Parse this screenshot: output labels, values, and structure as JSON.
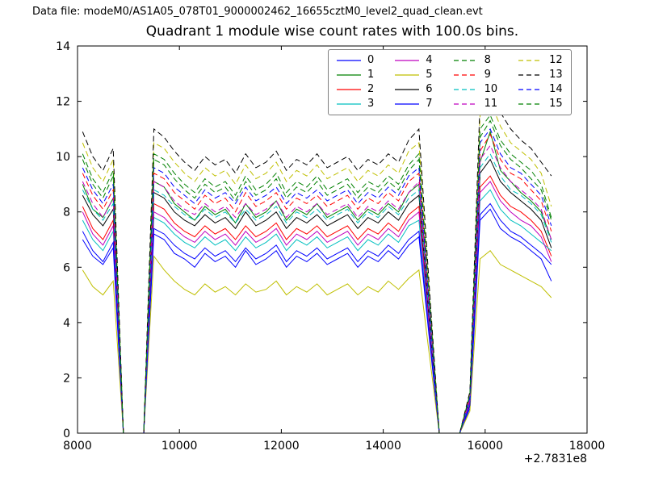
{
  "figure": {
    "header": "Data file: modeM0/AS1A05_078T01_9000002462_16655cztM0_level2_quad_clean.evt",
    "title": "Quadrant 1 module wise count rates with 100.0s bins.",
    "x_offset_label": "+2.7831e8"
  },
  "chart_data": {
    "type": "line",
    "title": "Quadrant 1 module wise count rates with 100.0s bins.",
    "xlabel": "",
    "ylabel": "",
    "xlim": [
      8000,
      18000
    ],
    "ylim": [
      0,
      14
    ],
    "xticks": [
      8000,
      10000,
      12000,
      14000,
      16000,
      18000
    ],
    "yticks": [
      0,
      2,
      4,
      6,
      8,
      10,
      12,
      14
    ],
    "x_offset": "+2.7831e8",
    "grid": false,
    "legend_position": "upper center",
    "x": [
      8100,
      8300,
      8500,
      8700,
      8900,
      9100,
      9300,
      9500,
      9700,
      9900,
      10100,
      10300,
      10500,
      10700,
      10900,
      11100,
      11300,
      11500,
      11700,
      11900,
      12100,
      12300,
      12500,
      12700,
      12900,
      13100,
      13300,
      13500,
      13700,
      13900,
      14100,
      14300,
      14500,
      14700,
      14900,
      15100,
      15300,
      15500,
      15700,
      15900,
      16100,
      16300,
      16500,
      16700,
      16900,
      17100,
      17300
    ],
    "series": [
      {
        "name": "0",
        "color": "#0000ff",
        "style": "solid",
        "values": [
          7.0,
          6.4,
          6.1,
          6.7,
          0,
          0,
          0,
          7.2,
          7.0,
          6.5,
          6.3,
          6.0,
          6.5,
          6.2,
          6.4,
          6.0,
          6.6,
          6.1,
          6.3,
          6.6,
          6.0,
          6.4,
          6.2,
          6.5,
          6.1,
          6.3,
          6.5,
          6.0,
          6.4,
          6.2,
          6.6,
          6.3,
          6.8,
          7.1,
          3.5,
          0,
          0,
          0,
          0.9,
          7.7,
          8.1,
          7.4,
          7.1,
          6.9,
          6.6,
          6.3,
          5.5
        ]
      },
      {
        "name": "1",
        "color": "#008000",
        "style": "solid",
        "values": [
          9.0,
          8.1,
          7.8,
          8.5,
          0,
          0,
          0,
          9.1,
          8.9,
          8.3,
          8.0,
          7.7,
          8.2,
          7.9,
          8.1,
          7.6,
          8.3,
          7.8,
          8.0,
          8.4,
          7.7,
          8.1,
          7.9,
          8.3,
          7.8,
          8.0,
          8.2,
          7.7,
          8.1,
          7.9,
          8.3,
          8.0,
          8.7,
          9.0,
          4.4,
          0,
          0,
          0,
          1.2,
          9.8,
          10.9,
          9.5,
          9.1,
          8.7,
          8.4,
          8.0,
          7.0
        ]
      },
      {
        "name": "2",
        "color": "#ff0000",
        "style": "solid",
        "values": [
          8.2,
          7.4,
          7.0,
          7.7,
          0,
          0,
          0,
          8.3,
          8.1,
          7.6,
          7.3,
          7.1,
          7.5,
          7.2,
          7.4,
          7.0,
          7.5,
          7.1,
          7.3,
          7.6,
          7.0,
          7.4,
          7.2,
          7.5,
          7.1,
          7.3,
          7.5,
          7.0,
          7.4,
          7.2,
          7.6,
          7.3,
          7.9,
          8.2,
          4.0,
          0,
          0,
          0,
          1.1,
          8.9,
          9.3,
          8.6,
          8.2,
          8.0,
          7.7,
          7.3,
          6.4
        ]
      },
      {
        "name": "3",
        "color": "#00bfbf",
        "style": "solid",
        "values": [
          7.7,
          7.0,
          6.6,
          7.3,
          0,
          0,
          0,
          7.8,
          7.6,
          7.2,
          6.9,
          6.7,
          7.1,
          6.8,
          7.0,
          6.6,
          7.1,
          6.7,
          6.9,
          7.2,
          6.6,
          7.0,
          6.8,
          7.1,
          6.7,
          6.9,
          7.1,
          6.6,
          7.0,
          6.8,
          7.2,
          6.9,
          7.5,
          7.7,
          3.8,
          0,
          0,
          0,
          1.0,
          8.4,
          8.8,
          8.1,
          7.7,
          7.5,
          7.2,
          6.9,
          6.6
        ]
      },
      {
        "name": "4",
        "color": "#bf00bf",
        "style": "solid",
        "values": [
          8.0,
          7.2,
          6.8,
          7.5,
          0,
          0,
          0,
          8.0,
          7.8,
          7.4,
          7.1,
          6.9,
          7.3,
          7.0,
          7.2,
          6.8,
          7.3,
          6.9,
          7.1,
          7.4,
          6.8,
          7.2,
          7.0,
          7.3,
          6.9,
          7.1,
          7.3,
          6.8,
          7.2,
          7.0,
          7.4,
          7.1,
          7.7,
          8.0,
          3.9,
          0,
          0,
          0,
          1.1,
          8.7,
          9.1,
          8.4,
          8.0,
          7.7,
          7.5,
          7.1,
          6.2
        ]
      },
      {
        "name": "5",
        "color": "#bfbf00",
        "style": "solid",
        "values": [
          5.9,
          5.3,
          5.0,
          5.5,
          0,
          0,
          0,
          6.4,
          5.9,
          5.5,
          5.2,
          5.0,
          5.4,
          5.1,
          5.3,
          5.0,
          5.4,
          5.1,
          5.2,
          5.5,
          5.0,
          5.3,
          5.1,
          5.4,
          5.0,
          5.2,
          5.4,
          5.0,
          5.3,
          5.1,
          5.5,
          5.2,
          5.6,
          5.9,
          2.9,
          0,
          0,
          0,
          0.8,
          6.3,
          6.6,
          6.1,
          5.9,
          5.7,
          5.5,
          5.3,
          4.9
        ]
      },
      {
        "name": "6",
        "color": "#000000",
        "style": "solid",
        "values": [
          8.6,
          7.9,
          7.5,
          8.1,
          0,
          0,
          0,
          8.7,
          8.5,
          8.0,
          7.7,
          7.5,
          7.9,
          7.6,
          7.8,
          7.4,
          8.0,
          7.5,
          7.7,
          8.0,
          7.4,
          7.8,
          7.6,
          7.9,
          7.5,
          7.7,
          7.9,
          7.4,
          7.8,
          7.6,
          8.0,
          7.7,
          8.3,
          8.6,
          4.2,
          0,
          0,
          0,
          1.2,
          9.4,
          9.9,
          9.1,
          8.7,
          8.4,
          8.1,
          7.7,
          6.7
        ]
      },
      {
        "name": "7",
        "color": "#0000ff",
        "style": "solid",
        "values": [
          7.3,
          6.6,
          6.2,
          6.9,
          0,
          0,
          0,
          7.4,
          7.2,
          6.8,
          6.5,
          6.3,
          6.7,
          6.4,
          6.6,
          6.2,
          6.7,
          6.3,
          6.5,
          6.8,
          6.2,
          6.6,
          6.4,
          6.7,
          6.3,
          6.5,
          6.7,
          6.2,
          6.6,
          6.4,
          6.8,
          6.5,
          7.0,
          7.3,
          3.6,
          0,
          0,
          0,
          1.0,
          7.9,
          8.3,
          7.7,
          7.3,
          7.1,
          6.8,
          6.5,
          6.1
        ]
      },
      {
        "name": "8",
        "color": "#008000",
        "style": "dashed",
        "values": [
          9.9,
          9.0,
          8.5,
          9.3,
          0,
          0,
          0,
          9.9,
          9.7,
          9.2,
          8.8,
          8.5,
          9.0,
          8.7,
          8.9,
          8.4,
          9.1,
          8.6,
          8.8,
          9.2,
          8.5,
          8.9,
          8.7,
          9.1,
          8.6,
          8.8,
          9.0,
          8.5,
          8.9,
          8.7,
          9.1,
          8.8,
          9.5,
          9.9,
          4.8,
          0,
          0,
          0,
          1.3,
          10.7,
          11.3,
          10.4,
          9.9,
          9.6,
          9.2,
          8.8,
          7.7
        ]
      },
      {
        "name": "9",
        "color": "#ff0000",
        "style": "dashed",
        "values": [
          9.4,
          8.6,
          8.1,
          8.8,
          0,
          0,
          0,
          9.4,
          9.2,
          8.7,
          8.4,
          8.1,
          8.6,
          8.3,
          8.5,
          8.0,
          8.7,
          8.2,
          8.4,
          8.7,
          8.1,
          8.5,
          8.3,
          8.6,
          8.2,
          8.4,
          8.6,
          8.1,
          8.5,
          8.3,
          8.7,
          8.4,
          9.1,
          9.4,
          4.6,
          0,
          0,
          0,
          1.3,
          10.2,
          10.8,
          9.9,
          9.4,
          9.2,
          8.8,
          8.4,
          7.3
        ]
      },
      {
        "name": "10",
        "color": "#00bfbf",
        "style": "dashed",
        "values": [
          8.8,
          8.1,
          7.7,
          8.3,
          0,
          0,
          0,
          8.8,
          8.6,
          8.2,
          7.9,
          7.7,
          8.1,
          7.8,
          8.0,
          7.6,
          8.1,
          7.7,
          7.9,
          8.2,
          7.6,
          8.0,
          7.8,
          8.1,
          7.7,
          7.9,
          8.1,
          7.6,
          8.0,
          7.8,
          8.2,
          7.9,
          8.5,
          8.8,
          4.3,
          0,
          0,
          0,
          1.2,
          9.6,
          10.1,
          9.3,
          8.8,
          8.6,
          8.3,
          7.9,
          6.9
        ]
      },
      {
        "name": "11",
        "color": "#bf00bf",
        "style": "dashed",
        "values": [
          9.1,
          8.3,
          7.8,
          8.5,
          0,
          0,
          0,
          9.1,
          8.9,
          8.4,
          8.1,
          7.9,
          8.3,
          8.0,
          8.2,
          7.8,
          8.3,
          7.9,
          8.1,
          8.4,
          7.8,
          8.2,
          8.0,
          8.3,
          7.9,
          8.1,
          8.3,
          7.8,
          8.2,
          8.0,
          8.4,
          8.1,
          8.7,
          9.1,
          4.5,
          0,
          0,
          0,
          1.2,
          9.9,
          10.4,
          9.6,
          9.1,
          8.8,
          8.5,
          8.1,
          7.0
        ]
      },
      {
        "name": "12",
        "color": "#bfbf00",
        "style": "dashed",
        "values": [
          10.5,
          9.6,
          9.1,
          9.9,
          0,
          0,
          0,
          10.5,
          10.3,
          9.8,
          9.4,
          9.1,
          9.6,
          9.3,
          9.5,
          9.0,
          9.7,
          9.2,
          9.4,
          9.8,
          9.1,
          9.5,
          9.3,
          9.7,
          9.2,
          9.4,
          9.6,
          9.1,
          9.5,
          9.3,
          9.7,
          9.4,
          10.2,
          10.5,
          5.2,
          0,
          0,
          0,
          1.4,
          11.5,
          12.0,
          11.1,
          10.5,
          10.2,
          9.9,
          9.4,
          8.2
        ]
      },
      {
        "name": "13",
        "color": "#000000",
        "style": "dashed",
        "values": [
          10.9,
          10.0,
          9.5,
          10.3,
          0,
          0,
          0,
          11.0,
          10.7,
          10.2,
          9.8,
          9.5,
          10.0,
          9.7,
          9.9,
          9.4,
          10.1,
          9.6,
          9.8,
          10.2,
          9.5,
          9.9,
          9.7,
          10.1,
          9.6,
          9.8,
          10.0,
          9.5,
          9.9,
          9.7,
          10.1,
          9.8,
          10.6,
          11.0,
          5.4,
          0,
          0,
          0,
          1.5,
          12.0,
          12.4,
          11.6,
          11.0,
          10.6,
          10.3,
          9.8,
          9.3
        ]
      },
      {
        "name": "14",
        "color": "#0000ff",
        "style": "dashed",
        "values": [
          9.6,
          8.8,
          8.3,
          9.0,
          0,
          0,
          0,
          9.6,
          9.4,
          8.9,
          8.6,
          8.3,
          8.8,
          8.5,
          8.7,
          8.3,
          8.9,
          8.4,
          8.6,
          8.9,
          8.3,
          8.7,
          8.5,
          8.8,
          8.4,
          8.6,
          8.8,
          8.3,
          8.7,
          8.5,
          8.9,
          8.6,
          9.3,
          9.6,
          4.7,
          0,
          0,
          0,
          1.3,
          10.5,
          11.0,
          10.1,
          9.6,
          9.4,
          9.0,
          8.6,
          7.5
        ]
      },
      {
        "name": "15",
        "color": "#008000",
        "style": "dashed",
        "values": [
          10.1,
          9.2,
          8.7,
          9.5,
          0,
          0,
          0,
          10.1,
          9.9,
          9.4,
          9.0,
          8.7,
          9.2,
          8.9,
          9.1,
          8.6,
          9.3,
          8.8,
          9.0,
          9.4,
          8.7,
          9.1,
          8.9,
          9.3,
          8.8,
          9.0,
          9.2,
          8.7,
          9.1,
          8.9,
          9.3,
          9.0,
          9.7,
          10.1,
          5.0,
          0,
          0,
          0,
          1.4,
          11.0,
          11.5,
          10.6,
          10.1,
          9.8,
          9.5,
          9.0,
          7.8
        ]
      }
    ]
  }
}
